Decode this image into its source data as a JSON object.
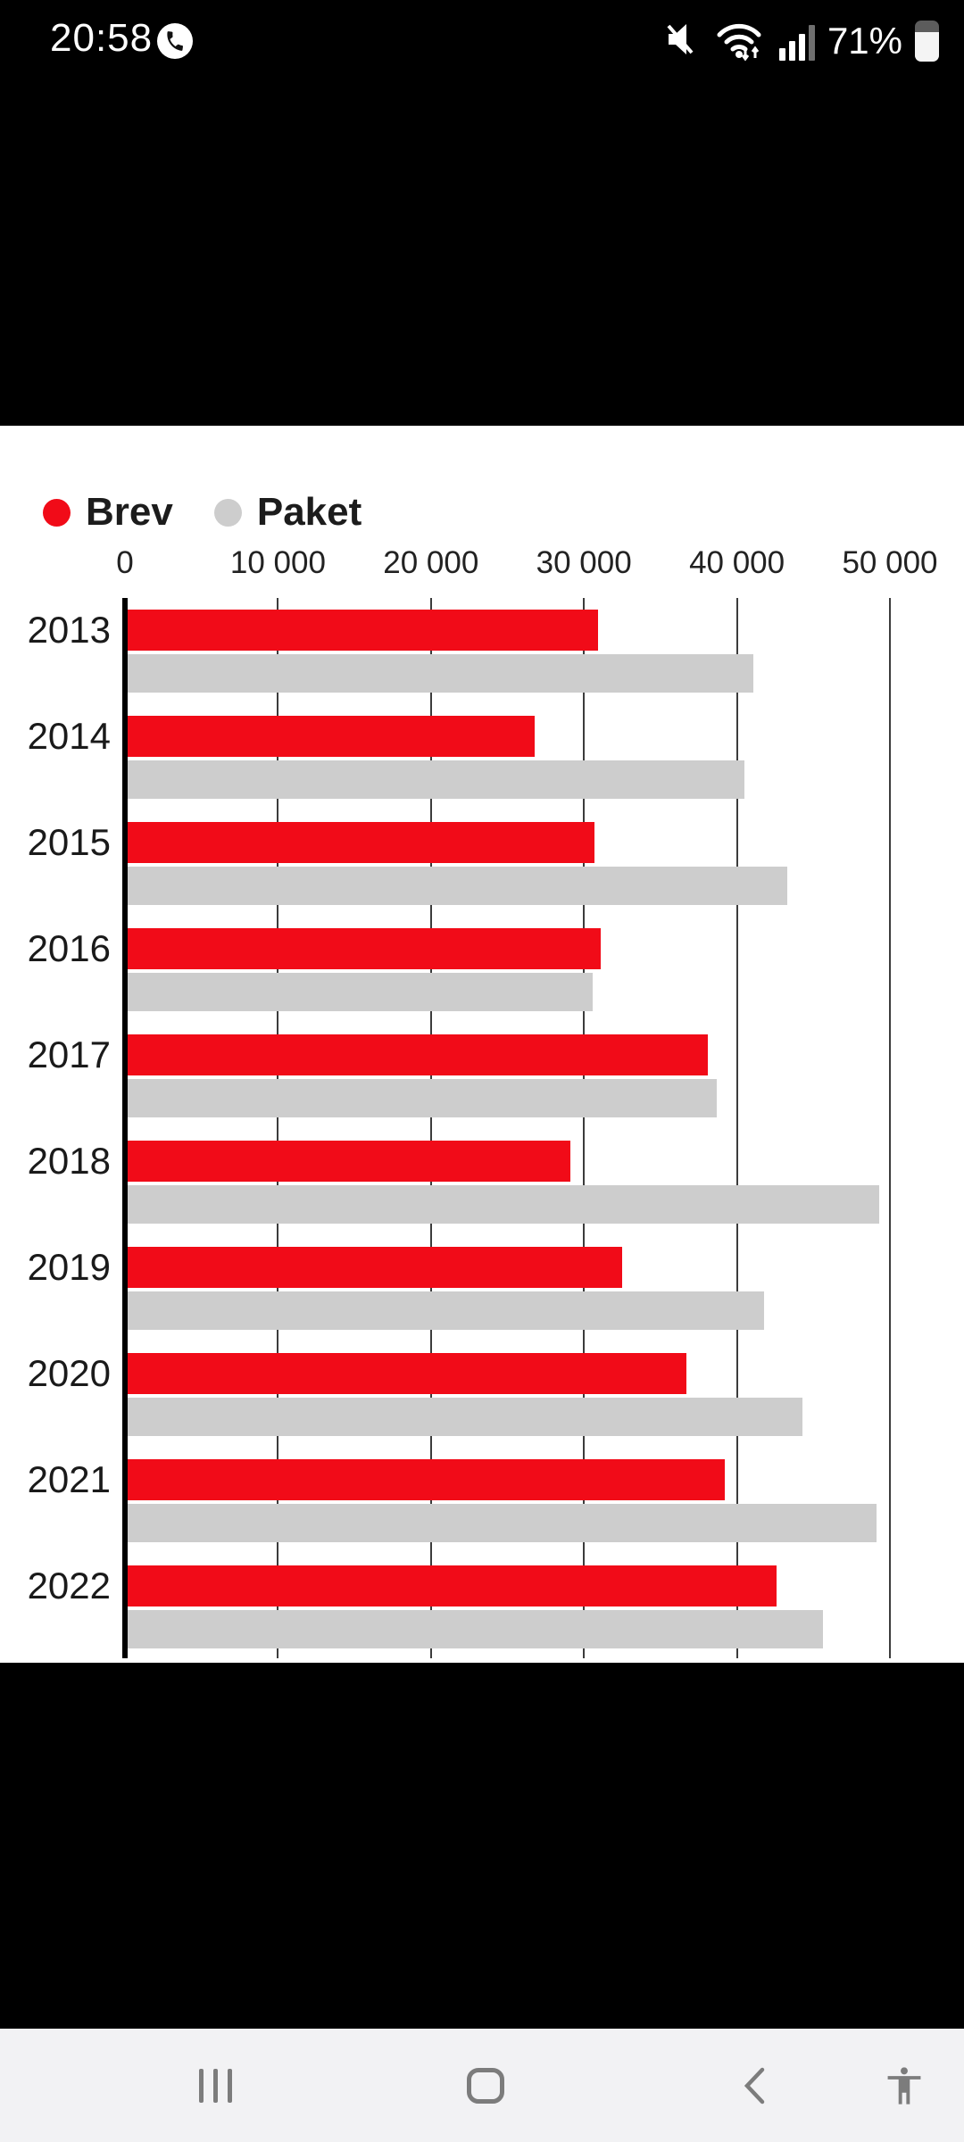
{
  "status_bar": {
    "time": "20:58",
    "battery_percent": "71%",
    "battery_level": 71,
    "icons": [
      "ongoing-call-icon",
      "mute-icon",
      "wifi-icon",
      "signal-icon",
      "battery-icon"
    ]
  },
  "legend": {
    "items": [
      {
        "label": "Brev",
        "color": "#f10b18"
      },
      {
        "label": "Paket",
        "color": "#cdcdcd"
      }
    ]
  },
  "chart_data": {
    "type": "bar",
    "orientation": "horizontal",
    "title": "",
    "xlabel": "",
    "ylabel": "",
    "categories": [
      "2013",
      "2014",
      "2015",
      "2016",
      "2017",
      "2018",
      "2019",
      "2020",
      "2021",
      "2022"
    ],
    "series": [
      {
        "name": "Brev",
        "color": "#f10b18",
        "values": [
          30900,
          26800,
          30700,
          31100,
          38100,
          29100,
          32500,
          36700,
          39200,
          42600
        ]
      },
      {
        "name": "Paket",
        "color": "#cdcdcd",
        "values": [
          41100,
          40500,
          43300,
          30600,
          38700,
          49300,
          41800,
          44300,
          49100,
          45600
        ]
      }
    ],
    "xlim": [
      0,
      50000
    ],
    "x_ticks": [
      0,
      10000,
      20000,
      30000,
      40000,
      50000
    ],
    "x_tick_labels": [
      "0",
      "10 000",
      "20 000",
      "30 000",
      "40 000",
      "50 000"
    ],
    "grid": true,
    "legend_position": "top-left"
  },
  "nav_bar": {
    "recents": "recents-button",
    "home": "home-button",
    "back": "back-button",
    "accessibility": "accessibility-button"
  },
  "colors": {
    "panel_bg": "#ffffff",
    "screen_bg": "#000000",
    "gridline": "#3c3c3c",
    "axis": "#000000",
    "navbar_bg": "#f2f2f4",
    "navbar_icon": "#7c7c7c"
  }
}
